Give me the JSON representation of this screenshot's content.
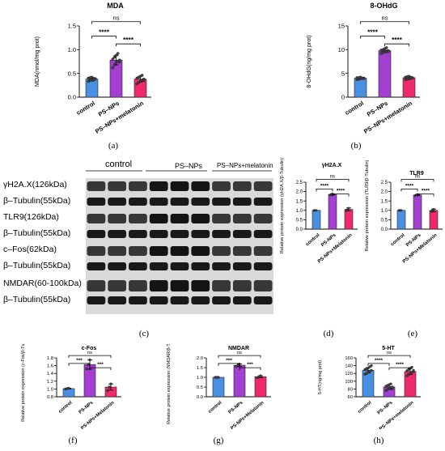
{
  "panel_labels": [
    "(a)",
    "(b)",
    "(c)",
    "(d)",
    "(e)",
    "(f)",
    "(g)",
    "(h)"
  ],
  "significance": {
    "ns": "ns",
    "three": "***",
    "four": "****"
  },
  "western_blot": {
    "groups": [
      "control",
      "PS–NPs",
      "PS–NPs+melatonin"
    ],
    "bands": [
      "γH2A.X(126kDa)",
      "β–Tubulin(55kDa)",
      "TLR9(126kDa)",
      "β–Tubulin(55kDa)",
      "c–Fos(62kDa)",
      "β–Tubulin(55kDa)",
      "NMDAR(60-100kDa)",
      "β–Tubulin(55kDa)"
    ]
  },
  "colors": {
    "control": "#4a90e2",
    "ps_nps": "#a33fd1",
    "melatonin": "#ee2a6b"
  },
  "chart_data": [
    {
      "type": "bar",
      "title": "MDA",
      "categories": [
        "control",
        "PS–NPs",
        "PS–NPs+melatonin"
      ],
      "values": [
        0.38,
        0.78,
        0.38
      ],
      "errors": [
        0.04,
        0.1,
        0.06
      ],
      "points": [
        [
          0.33,
          0.35,
          0.36,
          0.38,
          0.39,
          0.4,
          0.41,
          0.42,
          0.36,
          0.38
        ],
        [
          0.62,
          0.68,
          0.72,
          0.76,
          0.78,
          0.8,
          0.84,
          0.88,
          0.92,
          0.74
        ],
        [
          0.28,
          0.31,
          0.34,
          0.36,
          0.38,
          0.4,
          0.42,
          0.44,
          0.46,
          0.35
        ]
      ],
      "ylabel": "MDA(nmol/mg prot)",
      "ylim": [
        0.0,
        1.5
      ],
      "yticks": [
        "0.0",
        "0.5",
        "1.0",
        "1.5"
      ],
      "ytick_values": [
        0,
        0.5,
        1.0,
        1.5
      ],
      "comparisons": [
        {
          "from": 0,
          "to": 1,
          "label": "****"
        },
        {
          "from": 1,
          "to": 2,
          "label": "****"
        },
        {
          "from": 0,
          "to": 2,
          "label": "ns"
        }
      ]
    },
    {
      "type": "bar",
      "title": "8-OHdG",
      "categories": [
        "control",
        "PS–NPs",
        "PS–NPs+melatonin"
      ],
      "values": [
        4.0,
        9.8,
        4.1
      ],
      "errors": [
        0.2,
        0.4,
        0.3
      ],
      "points": [
        [
          3.7,
          3.8,
          3.9,
          4.0,
          4.0,
          4.1,
          4.1,
          4.2,
          4.0,
          3.9
        ],
        [
          9.2,
          9.4,
          9.5,
          9.7,
          9.8,
          9.9,
          10.0,
          10.2,
          10.4,
          9.6
        ],
        [
          3.7,
          3.8,
          3.9,
          4.0,
          4.1,
          4.2,
          4.3,
          4.4,
          4.1,
          4.0
        ]
      ],
      "ylabel": "8-OHdG(ng/mg prot)",
      "ylim": [
        0,
        15
      ],
      "yticks": [
        "0",
        "5",
        "10",
        "15"
      ],
      "ytick_values": [
        0,
        5,
        10,
        15
      ],
      "comparisons": [
        {
          "from": 0,
          "to": 1,
          "label": "****"
        },
        {
          "from": 1,
          "to": 2,
          "label": "****"
        },
        {
          "from": 0,
          "to": 2,
          "label": "ns"
        }
      ]
    },
    {
      "type": "bar",
      "title": "γH2A.X",
      "categories": [
        "control",
        "PS-NPs",
        "PS-NPs+Melatonin"
      ],
      "values": [
        1.0,
        1.85,
        1.05
      ],
      "errors": [
        0.0,
        0.03,
        0.08
      ],
      "points": [
        [
          1.0,
          1.0,
          1.0
        ],
        [
          1.82,
          1.86,
          1.88
        ],
        [
          0.98,
          1.04,
          1.12
        ]
      ],
      "ylabel": "Relative protein expression (γH2A.X/β-Tubulin)",
      "ylim": [
        0.0,
        2.5
      ],
      "yticks": [
        "0.0",
        "0.5",
        "1.0",
        "1.5",
        "2.0",
        "2.5"
      ],
      "ytick_values": [
        0,
        0.5,
        1.0,
        1.5,
        2.0,
        2.5
      ],
      "comparisons": [
        {
          "from": 0,
          "to": 1,
          "label": "****"
        },
        {
          "from": 1,
          "to": 2,
          "label": "****"
        },
        {
          "from": 0,
          "to": 2,
          "label": "ns"
        }
      ]
    },
    {
      "type": "bar",
      "title": "TLR9",
      "categories": [
        "control",
        "PS-NPs",
        "PS-NPs+Melatonin"
      ],
      "values": [
        1.0,
        1.82,
        1.0
      ],
      "errors": [
        0.0,
        0.03,
        0.07
      ],
      "points": [
        [
          1.0,
          1.0,
          1.0
        ],
        [
          1.79,
          1.82,
          1.85
        ],
        [
          0.94,
          1.0,
          1.06
        ]
      ],
      "ylabel": "Relative protein expression (TLR9/β-Tubulin)",
      "ylim": [
        0.0,
        2.5
      ],
      "yticks": [
        "0.0",
        "0.5",
        "1.0",
        "1.5",
        "2.0",
        "2.5"
      ],
      "ytick_values": [
        0,
        0.5,
        1.0,
        1.5,
        2.0,
        2.5
      ],
      "comparisons": [
        {
          "from": 0,
          "to": 1,
          "label": "****"
        },
        {
          "from": 1,
          "to": 2,
          "label": "****"
        },
        {
          "from": 0,
          "to": 2,
          "label": "ns"
        }
      ]
    },
    {
      "type": "bar",
      "title": "c-Fos",
      "categories": [
        "control",
        "PS-NPs",
        "PS-NPs+Melatonin"
      ],
      "values": [
        1.01,
        1.63,
        1.05
      ],
      "errors": [
        0.01,
        0.12,
        0.08
      ],
      "points": [
        [
          1.0,
          1.01,
          1.02
        ],
        [
          1.52,
          1.62,
          1.75
        ],
        [
          0.96,
          1.05,
          1.13
        ]
      ],
      "ylabel": "Relative protein expression (c-Fos/β-Tubulin)",
      "ylim": [
        0.8,
        1.8
      ],
      "yticks": [
        "0.8",
        "1.0",
        "1.2",
        "1.4",
        "1.6",
        "1.8"
      ],
      "ytick_values": [
        0.8,
        1.0,
        1.2,
        1.4,
        1.6,
        1.8
      ],
      "comparisons": [
        {
          "from": 0,
          "to": 1,
          "label": "***"
        },
        {
          "from": 1,
          "to": 2,
          "label": "***"
        },
        {
          "from": 0,
          "to": 2,
          "label": "ns"
        }
      ]
    },
    {
      "type": "bar",
      "title": "NMDAR",
      "categories": [
        "control",
        "PS-NPs",
        "PS-NPs+Melatonin"
      ],
      "values": [
        1.0,
        1.62,
        1.03
      ],
      "errors": [
        0.0,
        0.07,
        0.05
      ],
      "points": [
        [
          1.0,
          1.0,
          1.0
        ],
        [
          1.56,
          1.62,
          1.68
        ],
        [
          0.98,
          1.03,
          1.08
        ]
      ],
      "ylabel": "Relative protein expression (NMDAR/β-Tubulin)",
      "ylim": [
        0.0,
        2.0
      ],
      "yticks": [
        "0.0",
        "0.5",
        "1.0",
        "1.5",
        "2.0"
      ],
      "ytick_values": [
        0,
        0.5,
        1.0,
        1.5,
        2.0
      ],
      "comparisons": [
        {
          "from": 0,
          "to": 1,
          "label": "***"
        },
        {
          "from": 1,
          "to": 2,
          "label": "***"
        },
        {
          "from": 0,
          "to": 2,
          "label": "ns"
        }
      ]
    },
    {
      "type": "bar",
      "title": "5-HT",
      "categories": [
        "control",
        "PS–NPs",
        "PS–NPs+melatonin"
      ],
      "values": [
        128,
        85,
        125
      ],
      "errors": [
        7,
        6,
        8
      ],
      "points": [
        [
          118,
          120,
          123,
          126,
          128,
          130,
          132,
          134,
          137,
          140
        ],
        [
          76,
          79,
          82,
          84,
          85,
          87,
          89,
          91,
          93,
          80
        ],
        [
          114,
          117,
          120,
          123,
          125,
          127,
          130,
          133,
          136,
          128
        ]
      ],
      "ylabel": "5-HT(ng/mg prot)",
      "ylim": [
        60,
        160
      ],
      "yticks": [
        "60",
        "80",
        "100",
        "120",
        "140",
        "160"
      ],
      "ytick_values": [
        60,
        80,
        100,
        120,
        140,
        160
      ],
      "comparisons": [
        {
          "from": 0,
          "to": 1,
          "label": "****"
        },
        {
          "from": 1,
          "to": 2,
          "label": "****"
        },
        {
          "from": 0,
          "to": 2,
          "label": "ns"
        }
      ]
    }
  ]
}
